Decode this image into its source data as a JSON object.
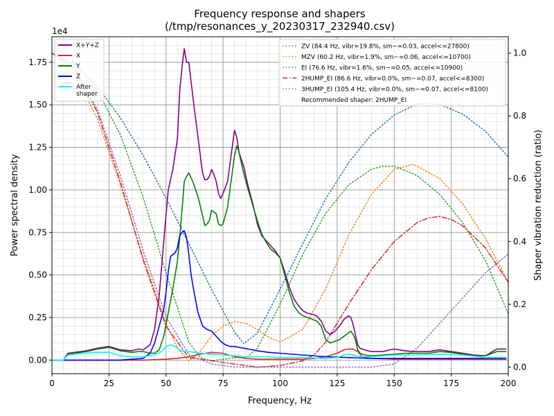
{
  "chart_data": {
    "type": "line",
    "title": "Frequency response and shapers",
    "subtitle": "(/tmp/resonances_y_20230317_232940.csv)",
    "xlabel": "Frequency, Hz",
    "ylabel": "Power spectral density",
    "y2label": "Shaper vibration reduction (ratio)",
    "y_multiplier_label": "1e4",
    "xlim": [
      0,
      200
    ],
    "ylim": [
      -0.08,
      1.9
    ],
    "y2lim": [
      -0.021,
      1.052
    ],
    "x_ticks": [
      0,
      25,
      50,
      75,
      100,
      125,
      150,
      175,
      200
    ],
    "y_ticks": [
      0.0,
      0.25,
      0.5,
      0.75,
      1.0,
      1.25,
      1.5,
      1.75
    ],
    "y_tick_labels": [
      "0.00",
      "0.25",
      "0.50",
      "0.75",
      "1.00",
      "1.25",
      "1.50",
      "1.75"
    ],
    "y2_ticks": [
      0.0,
      0.2,
      0.4,
      0.6,
      0.8,
      1.0
    ],
    "y2_tick_labels": [
      "0.0",
      "0.2",
      "0.4",
      "0.6",
      "0.8",
      "1.0"
    ],
    "grid": true,
    "legend_left": {
      "placement": "top-left",
      "entries": [
        "X+Y+Z",
        "X",
        "Y",
        "Z",
        "After\nshaper"
      ]
    },
    "legend_right": {
      "placement": "top-right",
      "entries": [
        "ZV (84.4 Hz, vibr=19.8%, sm~=0.03, accel<=27800)",
        "MZV (60.2 Hz, vibr=1.9%, sm~=0.06, accel<=10700)",
        "EI (76.6 Hz, vibr=1.6%, sm~=0.05, accel<=10900)",
        "2HUMP_EI (86.6 Hz, vibr=0.0%, sm~=0.07, accel<=8300)",
        "3HUMP_EI (105.4 Hz, vibr=0.0%, sm~=0.07, accel<=8100)"
      ],
      "recommended": "Recommended shaper: 2HUMP_EI"
    },
    "series": [
      {
        "name": "X+Y+Z",
        "color": "#800080",
        "style": "solid",
        "axis": "left",
        "x": [
          0,
          5,
          7,
          10,
          15,
          20,
          25,
          30,
          35,
          38,
          40,
          43,
          45,
          47,
          49,
          51,
          53,
          55,
          56,
          57,
          58,
          59,
          60,
          62,
          64,
          66,
          67,
          68,
          69,
          70,
          71,
          72,
          73,
          74,
          75,
          77,
          79,
          80,
          81,
          82,
          84,
          86,
          88,
          90,
          92,
          94,
          96,
          98,
          100,
          102,
          104,
          106,
          108,
          110,
          112,
          114,
          116,
          118,
          120,
          122,
          124,
          126,
          128,
          130,
          131,
          132,
          133,
          134,
          135,
          137,
          140,
          145,
          148,
          150,
          155,
          158,
          160,
          163,
          165,
          170,
          175,
          180,
          185,
          190,
          195,
          199
        ],
        "values": [
          0.0,
          0.0,
          0.04,
          0.045,
          0.055,
          0.07,
          0.08,
          0.06,
          0.055,
          0.065,
          0.06,
          0.09,
          0.18,
          0.38,
          0.7,
          1.0,
          1.12,
          1.3,
          1.58,
          1.72,
          1.83,
          1.75,
          1.75,
          1.52,
          1.31,
          1.1,
          1.06,
          1.06,
          1.08,
          1.12,
          1.09,
          1.05,
          0.98,
          0.95,
          0.98,
          1.05,
          1.25,
          1.35,
          1.31,
          1.22,
          1.14,
          1.02,
          0.92,
          0.8,
          0.73,
          0.7,
          0.67,
          0.64,
          0.6,
          0.52,
          0.43,
          0.36,
          0.32,
          0.29,
          0.275,
          0.27,
          0.26,
          0.23,
          0.17,
          0.15,
          0.17,
          0.2,
          0.24,
          0.26,
          0.25,
          0.21,
          0.15,
          0.09,
          0.07,
          0.06,
          0.05,
          0.05,
          0.06,
          0.065,
          0.055,
          0.05,
          0.05,
          0.05,
          0.05,
          0.06,
          0.05,
          0.04,
          0.03,
          0.025,
          0.065,
          0.065
        ]
      },
      {
        "name": "X",
        "color": "#d62728",
        "style": "solid",
        "axis": "left",
        "x": [
          0,
          10,
          20,
          30,
          40,
          50,
          55,
          60,
          65,
          70,
          75,
          80,
          85,
          90,
          95,
          100,
          105,
          110,
          115,
          120,
          125,
          128,
          130,
          132,
          134,
          136,
          140,
          150,
          160,
          170,
          180,
          190,
          199
        ],
        "values": [
          0.0,
          0.0,
          0.0,
          0.0,
          0.0,
          0.005,
          0.01,
          0.02,
          0.035,
          0.045,
          0.04,
          0.02,
          0.01,
          0.005,
          0.005,
          0.005,
          0.005,
          0.005,
          0.01,
          0.02,
          0.04,
          0.06,
          0.065,
          0.065,
          0.05,
          0.02,
          0.01,
          0.005,
          0.005,
          0.005,
          0.005,
          0.005,
          0.005
        ]
      },
      {
        "name": "Y",
        "color": "#008000",
        "style": "solid",
        "axis": "left",
        "x": [
          0,
          5,
          7,
          10,
          15,
          20,
          25,
          30,
          35,
          38,
          40,
          43,
          45,
          47,
          49,
          51,
          53,
          55,
          56,
          57,
          58,
          59,
          60,
          62,
          64,
          66,
          67,
          68,
          69,
          70,
          71,
          72,
          73,
          74,
          75,
          77,
          79,
          80,
          81,
          82,
          84,
          86,
          88,
          90,
          92,
          94,
          96,
          98,
          100,
          102,
          104,
          106,
          108,
          110,
          112,
          114,
          116,
          118,
          120,
          122,
          124,
          126,
          128,
          130,
          131,
          132,
          133,
          134,
          135,
          137,
          140,
          145,
          150,
          155,
          160,
          165,
          170,
          175,
          180,
          185,
          190,
          195,
          199
        ],
        "values": [
          0.0,
          0.0,
          0.035,
          0.04,
          0.05,
          0.065,
          0.075,
          0.055,
          0.045,
          0.05,
          0.05,
          0.04,
          0.04,
          0.06,
          0.14,
          0.28,
          0.42,
          0.58,
          0.72,
          0.88,
          1.05,
          1.08,
          1.1,
          1.04,
          0.96,
          0.85,
          0.79,
          0.8,
          0.82,
          0.88,
          0.87,
          0.86,
          0.8,
          0.79,
          0.8,
          0.9,
          1.1,
          1.2,
          1.26,
          1.22,
          1.1,
          1.0,
          0.91,
          0.82,
          0.74,
          0.69,
          0.65,
          0.63,
          0.6,
          0.5,
          0.4,
          0.32,
          0.28,
          0.26,
          0.25,
          0.24,
          0.23,
          0.2,
          0.12,
          0.1,
          0.11,
          0.12,
          0.14,
          0.16,
          0.17,
          0.15,
          0.12,
          0.06,
          0.04,
          0.03,
          0.025,
          0.03,
          0.035,
          0.04,
          0.04,
          0.04,
          0.05,
          0.045,
          0.035,
          0.025,
          0.025,
          0.05,
          0.05
        ]
      },
      {
        "name": "Z",
        "color": "#0000ff",
        "style": "solid",
        "axis": "left",
        "x": [
          0,
          10,
          20,
          30,
          35,
          40,
          43,
          45,
          47,
          49,
          50,
          51,
          52,
          53,
          54,
          55,
          56,
          57,
          58,
          59,
          60,
          61,
          62,
          64,
          66,
          68,
          70,
          72,
          74,
          76,
          78,
          80,
          82,
          84,
          86,
          88,
          90,
          95,
          100,
          110,
          120,
          130,
          140,
          150,
          160,
          170,
          180,
          190,
          199
        ],
        "values": [
          0.0,
          0.0,
          0.0,
          0.0,
          0.005,
          0.01,
          0.04,
          0.1,
          0.2,
          0.3,
          0.4,
          0.52,
          0.61,
          0.62,
          0.63,
          0.66,
          0.73,
          0.75,
          0.76,
          0.72,
          0.62,
          0.5,
          0.42,
          0.28,
          0.2,
          0.18,
          0.17,
          0.14,
          0.11,
          0.09,
          0.08,
          0.08,
          0.075,
          0.07,
          0.065,
          0.06,
          0.055,
          0.045,
          0.04,
          0.03,
          0.02,
          0.015,
          0.01,
          0.01,
          0.01,
          0.01,
          0.01,
          0.01,
          0.01
        ]
      },
      {
        "name": "After shaper",
        "color": "#00ffff",
        "style": "solid",
        "axis": "left",
        "x": [
          0,
          5,
          7,
          10,
          15,
          20,
          25,
          28,
          30,
          35,
          40,
          45,
          48,
          50,
          52,
          54,
          56,
          58,
          60,
          65,
          70,
          75,
          80,
          85,
          90,
          95,
          100,
          110,
          120,
          125,
          128,
          130,
          132,
          135,
          140,
          150,
          160,
          170,
          180,
          190,
          199
        ],
        "values": [
          0.0,
          0.0,
          0.03,
          0.035,
          0.04,
          0.045,
          0.045,
          0.035,
          0.025,
          0.02,
          0.02,
          0.03,
          0.05,
          0.08,
          0.09,
          0.08,
          0.06,
          0.05,
          0.05,
          0.04,
          0.035,
          0.03,
          0.025,
          0.02,
          0.02,
          0.02,
          0.015,
          0.015,
          0.01,
          0.015,
          0.03,
          0.035,
          0.03,
          0.02,
          0.02,
          0.03,
          0.03,
          0.035,
          0.03,
          0.015,
          0.015
        ]
      },
      {
        "name": "ZV (84.4 Hz, vibr=19.8%, sm~=0.03, accel<=27800)",
        "color": "#1f77b4",
        "style": "dotted",
        "axis": "right",
        "x": [
          0,
          10,
          20,
          30,
          40,
          50,
          60,
          70,
          80,
          84,
          90,
          100,
          110,
          120,
          130,
          140,
          150,
          160,
          165,
          170,
          180,
          190,
          200
        ],
        "values": [
          1.0,
          0.962,
          0.892,
          0.794,
          0.674,
          0.538,
          0.393,
          0.247,
          0.112,
          0.075,
          0.108,
          0.248,
          0.394,
          0.536,
          0.651,
          0.741,
          0.803,
          0.838,
          0.84,
          0.836,
          0.806,
          0.751,
          0.669
        ]
      },
      {
        "name": "MZV (60.2 Hz, vibr=1.9%, sm~=0.06, accel<=10700)",
        "color": "#ff7f0e",
        "style": "dotted",
        "axis": "right",
        "x": [
          0,
          10,
          20,
          30,
          40,
          50,
          55,
          60,
          65,
          70,
          75,
          80,
          85,
          90,
          95,
          100,
          110,
          120,
          130,
          140,
          150,
          158,
          160,
          170,
          180,
          190,
          200
        ],
        "values": [
          1.0,
          0.93,
          0.79,
          0.58,
          0.35,
          0.14,
          0.06,
          0.02,
          0.05,
          0.1,
          0.13,
          0.145,
          0.14,
          0.12,
          0.095,
          0.08,
          0.12,
          0.25,
          0.42,
          0.55,
          0.63,
          0.645,
          0.64,
          0.6,
          0.52,
          0.41,
          0.27
        ]
      },
      {
        "name": "EI (76.6 Hz, vibr=1.6%, sm~=0.05, accel<=10900)",
        "color": "#2ca02c",
        "style": "dotted",
        "axis": "right",
        "x": [
          0,
          10,
          20,
          30,
          40,
          50,
          60,
          65,
          70,
          75,
          80,
          85,
          90,
          100,
          110,
          120,
          130,
          140,
          145,
          150,
          160,
          170,
          180,
          190,
          200
        ],
        "values": [
          1.0,
          0.97,
          0.88,
          0.74,
          0.54,
          0.3,
          0.08,
          0.03,
          0.02,
          0.025,
          0.03,
          0.03,
          0.06,
          0.2,
          0.36,
          0.49,
          0.58,
          0.63,
          0.64,
          0.64,
          0.61,
          0.55,
          0.46,
          0.34,
          0.17
        ]
      },
      {
        "name": "2HUMP_EI (86.6 Hz, vibr=0.0%, sm~=0.07, accel<=8300)",
        "color": "#d62728",
        "style": "dashdot",
        "axis": "right",
        "x": [
          0,
          10,
          20,
          30,
          40,
          50,
          60,
          70,
          80,
          90,
          100,
          110,
          115,
          120,
          130,
          140,
          150,
          160,
          165,
          170,
          175,
          180,
          190,
          200
        ],
        "values": [
          1.0,
          0.95,
          0.81,
          0.59,
          0.34,
          0.13,
          0.03,
          0.02,
          0.01,
          0.0,
          0.005,
          0.02,
          0.04,
          0.08,
          0.2,
          0.31,
          0.4,
          0.46,
          0.475,
          0.48,
          0.47,
          0.45,
          0.38,
          0.27
        ]
      },
      {
        "name": "3HUMP_EI (105.4 Hz, vibr=0.0%, sm~=0.07, accel<=8100)",
        "color": "#9467bd",
        "style": "dotted",
        "axis": "right",
        "x": [
          0,
          10,
          20,
          30,
          40,
          50,
          60,
          70,
          80,
          90,
          100,
          110,
          120,
          130,
          140,
          150,
          160,
          165,
          170,
          180,
          190,
          200
        ],
        "values": [
          1.0,
          0.95,
          0.82,
          0.61,
          0.37,
          0.16,
          0.04,
          0.01,
          0.0,
          0.0,
          0.0,
          0.0,
          0.0,
          0.0,
          0.0,
          0.01,
          0.06,
          0.1,
          0.14,
          0.22,
          0.3,
          0.36
        ]
      }
    ]
  }
}
